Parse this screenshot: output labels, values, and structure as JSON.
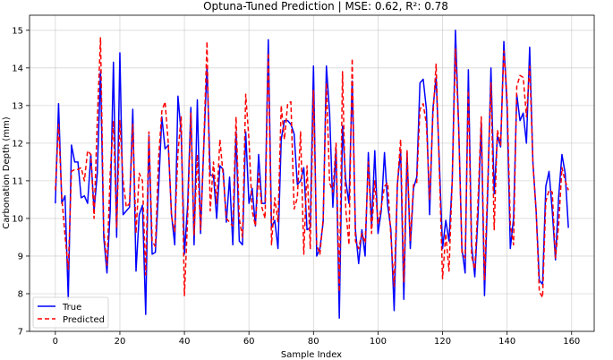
{
  "chart_data": {
    "type": "line",
    "title": "Optuna-Tuned Prediction | MSE: 0.62, R²: 0.78",
    "xlabel": "Sample Index",
    "ylabel": "Carbonation Depth (mm)",
    "xlim": [
      -8,
      167
    ],
    "ylim": [
      7,
      15.4
    ],
    "xticks": [
      0,
      20,
      40,
      60,
      80,
      100,
      120,
      140,
      160
    ],
    "yticks": [
      7,
      8,
      9,
      10,
      11,
      12,
      13,
      14,
      15
    ],
    "grid": true,
    "legend_position": "bottom-left",
    "series": [
      {
        "name": "True",
        "color": "#0000ff",
        "style": "solid",
        "values": [
          10.4,
          13.05,
          10.4,
          10.6,
          7.85,
          11.95,
          11.5,
          11.5,
          10.55,
          10.6,
          10.4,
          11.7,
          10.2,
          11.2,
          13.9,
          9.5,
          8.55,
          10.2,
          14.15,
          9.5,
          14.4,
          10.1,
          10.2,
          10.3,
          12.9,
          8.6,
          10.1,
          10.35,
          7.45,
          12.2,
          9.05,
          9.1,
          10.8,
          12.7,
          11.85,
          11.95,
          10.1,
          9.3,
          13.25,
          12.25,
          9.05,
          10.35,
          12.95,
          9.3,
          13.15,
          9.6,
          11.9,
          14.05,
          11.15,
          11.15,
          10.0,
          11.4,
          11.3,
          9.9,
          11.1,
          9.3,
          12.3,
          9.4,
          9.3,
          12.3,
          10.4,
          10.8,
          9.8,
          11.7,
          10.4,
          10.4,
          14.75,
          9.75,
          9.95,
          9.2,
          12.1,
          12.6,
          12.6,
          12.5,
          12.25,
          10.9,
          11.0,
          11.35,
          9.7,
          9.75,
          14.05,
          9.0,
          9.2,
          9.9,
          14.05,
          12.8,
          10.3,
          11.85,
          7.35,
          12.45,
          11.0,
          10.4,
          13.65,
          9.7,
          8.8,
          9.7,
          9.0,
          11.75,
          9.8,
          11.8,
          9.6,
          10.2,
          11.75,
          10.35,
          9.7,
          7.55,
          10.9,
          11.8,
          7.85,
          11.75,
          9.2,
          10.8,
          11.1,
          13.6,
          13.7,
          12.9,
          10.1,
          12.9,
          13.75,
          11.5,
          9.2,
          9.95,
          9.4,
          11.0,
          15.0,
          12.45,
          9.2,
          8.55,
          13.95,
          9.3,
          8.45,
          10.1,
          12.55,
          7.95,
          10.7,
          14.0,
          10.65,
          12.2,
          11.9,
          14.7,
          12.95,
          9.2,
          10.0,
          13.3,
          12.6,
          12.8,
          12.0,
          14.55,
          11.5,
          10.2,
          8.35,
          8.25,
          10.85,
          11.25,
          10.2,
          8.9,
          10.6,
          11.7,
          11.2,
          9.75
        ]
      },
      {
        "name": "Predicted",
        "color": "#ff0000",
        "style": "dashed",
        "values": [
          10.75,
          12.5,
          10.55,
          9.55,
          8.65,
          11.25,
          11.3,
          11.3,
          11.35,
          11.0,
          11.8,
          11.7,
          10.0,
          12.6,
          14.8,
          9.7,
          8.75,
          11.2,
          12.6,
          9.75,
          12.6,
          11.0,
          10.3,
          10.4,
          12.5,
          9.6,
          11.2,
          11.0,
          8.5,
          12.3,
          9.4,
          9.25,
          11.6,
          12.85,
          13.1,
          12.0,
          10.05,
          9.65,
          11.75,
          12.7,
          7.95,
          10.0,
          12.8,
          9.55,
          11.7,
          9.7,
          12.0,
          14.7,
          10.2,
          11.5,
          10.4,
          12.1,
          11.15,
          10.0,
          9.9,
          9.8,
          12.7,
          10.0,
          9.5,
          13.3,
          12.1,
          10.2,
          9.8,
          11.2,
          10.3,
          10.0,
          14.4,
          9.3,
          10.55,
          9.9,
          13.0,
          12.1,
          13.05,
          13.1,
          10.25,
          10.55,
          12.3,
          9.05,
          11.4,
          9.2,
          13.4,
          9.3,
          9.05,
          10.0,
          13.6,
          10.95,
          10.7,
          12.0,
          8.05,
          13.9,
          10.25,
          9.3,
          14.25,
          9.4,
          9.2,
          9.6,
          9.35,
          11.5,
          9.6,
          11.0,
          9.85,
          10.3,
          10.85,
          10.95,
          9.5,
          8.2,
          10.9,
          12.1,
          8.3,
          11.8,
          9.4,
          10.9,
          10.95,
          12.9,
          13.05,
          12.5,
          10.5,
          12.7,
          14.1,
          11.3,
          8.4,
          9.6,
          8.6,
          11.0,
          14.5,
          12.4,
          9.1,
          8.95,
          13.4,
          9.0,
          8.65,
          10.5,
          12.7,
          8.35,
          10.95,
          13.6,
          9.7,
          12.35,
          11.95,
          14.45,
          13.2,
          9.85,
          9.3,
          13.5,
          13.8,
          13.75,
          12.7,
          14.05,
          11.45,
          10.2,
          8.05,
          7.9,
          10.45,
          10.75,
          10.7,
          8.95,
          9.85,
          11.35,
          11.0,
          10.75
        ]
      }
    ]
  }
}
